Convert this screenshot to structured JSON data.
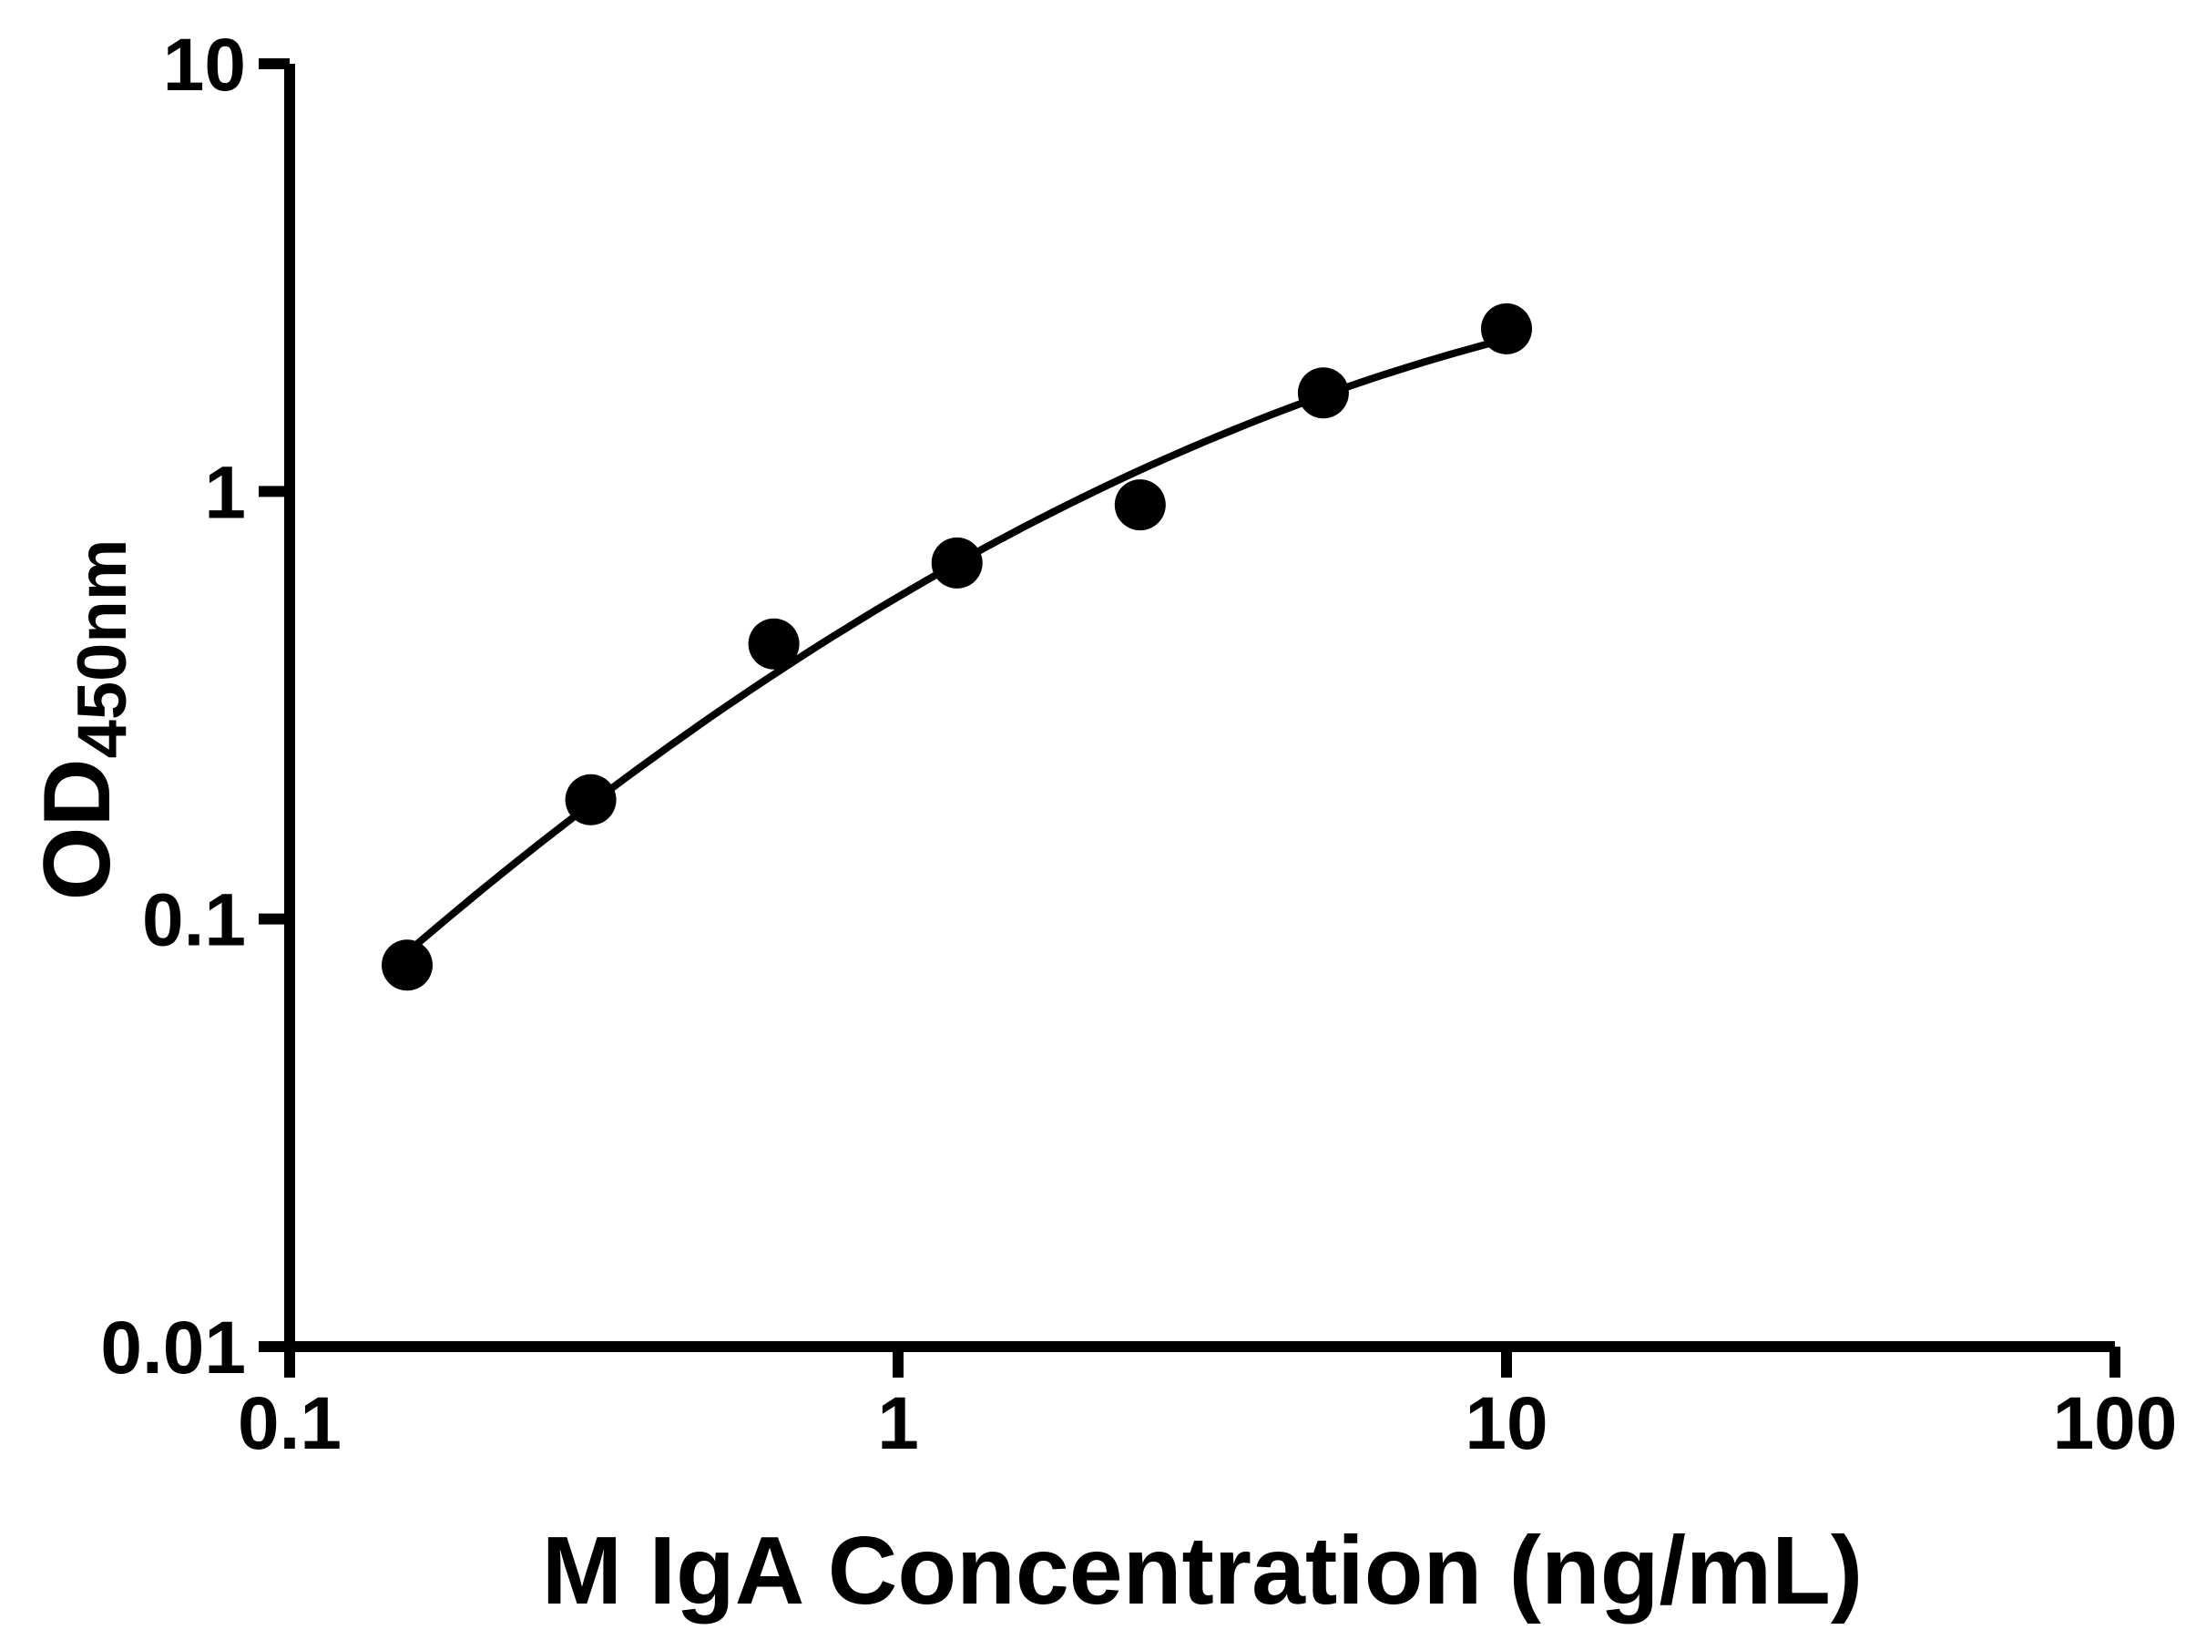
{
  "figure": {
    "background": "#ffffff"
  },
  "chart_data": {
    "type": "scatter",
    "title": "",
    "xlabel": "M IgA Concentration (ng/mL)",
    "ylabel": "OD450nm",
    "ylabel_main": "OD",
    "ylabel_sub": "450nm",
    "x_scale": "log10",
    "y_scale": "log10",
    "xlim": [
      0.1,
      100
    ],
    "ylim": [
      0.01,
      10
    ],
    "grid": false,
    "legend": "none",
    "axis_color": "#000000",
    "x_ticks": [
      {
        "value": 0.1,
        "label": "0.1"
      },
      {
        "value": 1,
        "label": "1"
      },
      {
        "value": 10,
        "label": "10"
      },
      {
        "value": 100,
        "label": "100"
      }
    ],
    "y_ticks": [
      {
        "value": 0.01,
        "label": "0.01"
      },
      {
        "value": 0.1,
        "label": "0.1"
      },
      {
        "value": 1,
        "label": "1"
      },
      {
        "value": 10,
        "label": "10"
      }
    ],
    "series": [
      {
        "marker": "circle",
        "color": "#000000",
        "line": "smooth-fit-curve",
        "points": [
          {
            "x": 0.156,
            "y": 0.078
          },
          {
            "x": 0.3125,
            "y": 0.19
          },
          {
            "x": 0.625,
            "y": 0.44
          },
          {
            "x": 1.25,
            "y": 0.68
          },
          {
            "x": 2.5,
            "y": 0.93
          },
          {
            "x": 5,
            "y": 1.7
          },
          {
            "x": 10,
            "y": 2.4
          }
        ]
      }
    ]
  }
}
